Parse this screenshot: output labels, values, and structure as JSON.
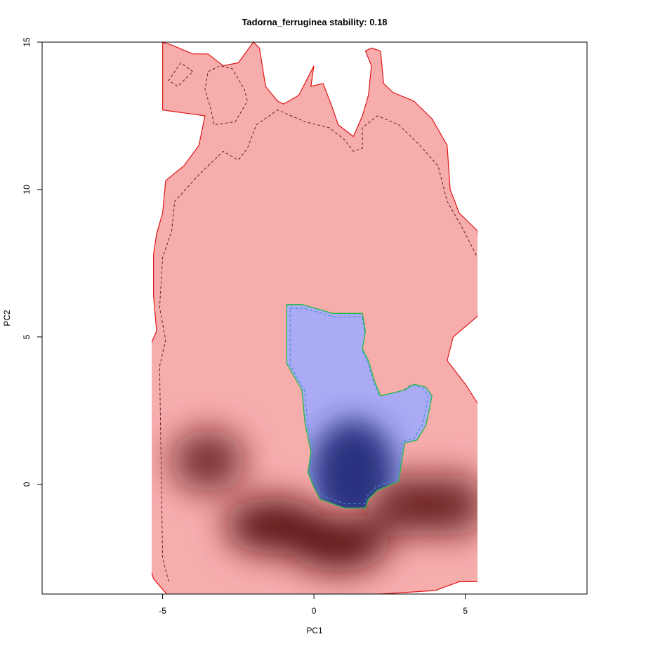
{
  "chart_data": {
    "type": "heatmap",
    "title": "Tadorna_ferruginea stability: 0.18",
    "xlabel": "PC1",
    "ylabel": "PC2",
    "xlim": [
      -8.98,
      9.02
    ],
    "ylim": [
      -3.72,
      15.0
    ],
    "x_ticks": [
      -5,
      0,
      5
    ],
    "x_tick_labels": [
      "-5",
      "0",
      "5"
    ],
    "y_ticks": [
      0,
      5,
      10,
      15
    ],
    "y_tick_labels": [
      "0",
      "5",
      "10",
      "15"
    ],
    "grid": false,
    "legend": "none",
    "colors": {
      "native_fill": "#f8adad",
      "native_outline": "#e01515",
      "native_density_peak": "#5a1212",
      "invaded_fill": "#aaaaf5",
      "invaded_density_peak": "#222a78",
      "invaded_outline": "#22bb44",
      "invaded_outline_inner": "#3a8fd0"
    },
    "series": [
      {
        "role": "native-envelope",
        "outline": [
          [
            -5.0,
            15.0
          ],
          [
            -4.7,
            14.9
          ],
          [
            -4.0,
            14.6
          ],
          [
            -3.5,
            14.6
          ],
          [
            -3.0,
            14.2
          ],
          [
            -2.5,
            14.3
          ],
          [
            -2.0,
            15.0
          ],
          [
            -1.8,
            14.8
          ],
          [
            -1.6,
            13.5
          ],
          [
            -1.2,
            13.0
          ],
          [
            -1.0,
            12.9
          ],
          [
            -0.5,
            13.2
          ],
          [
            -0.3,
            13.6
          ],
          [
            -0.1,
            14.0
          ],
          [
            0.0,
            14.2
          ],
          [
            -0.1,
            13.5
          ],
          [
            0.3,
            13.6
          ],
          [
            0.6,
            12.8
          ],
          [
            0.8,
            12.2
          ],
          [
            1.3,
            11.8
          ],
          [
            1.6,
            12.5
          ],
          [
            1.8,
            13.2
          ],
          [
            1.9,
            14.2
          ],
          [
            1.7,
            14.7
          ],
          [
            1.9,
            14.8
          ],
          [
            2.2,
            14.7
          ],
          [
            2.3,
            13.6
          ],
          [
            2.6,
            13.3
          ],
          [
            3.3,
            13.0
          ],
          [
            3.9,
            12.4
          ],
          [
            4.4,
            11.5
          ],
          [
            4.5,
            10.0
          ],
          [
            4.8,
            9.2
          ],
          [
            5.4,
            8.6
          ],
          [
            5.5,
            7.0
          ],
          [
            5.4,
            5.7
          ],
          [
            4.6,
            5.0
          ],
          [
            4.4,
            4.2
          ],
          [
            5.0,
            3.4
          ],
          [
            5.5,
            2.6
          ],
          [
            5.5,
            -3.3
          ],
          [
            4.8,
            -3.3
          ],
          [
            4.0,
            -3.6
          ],
          [
            1.0,
            -3.8
          ],
          [
            -4.8,
            -3.8
          ],
          [
            -5.3,
            -3.2
          ],
          [
            -5.5,
            -2.5
          ],
          [
            -5.5,
            4.5
          ],
          [
            -5.2,
            5.2
          ],
          [
            -5.3,
            6.4
          ],
          [
            -5.3,
            7.8
          ],
          [
            -5.2,
            8.5
          ],
          [
            -5.0,
            9.2
          ],
          [
            -4.9,
            10.3
          ],
          [
            -4.3,
            10.8
          ],
          [
            -3.8,
            11.5
          ],
          [
            -3.6,
            12.5
          ],
          [
            -4.3,
            12.6
          ],
          [
            -5.0,
            12.7
          ],
          [
            -5.0,
            15.0
          ]
        ],
        "contour_90": [
          [
            -4.0,
            14.0
          ],
          [
            -4.4,
            14.3
          ],
          [
            -4.8,
            13.7
          ],
          [
            -4.5,
            13.5
          ],
          [
            -4.0,
            14.0
          ],
          null,
          [
            -3.5,
            14.0
          ],
          [
            -3.1,
            14.2
          ],
          [
            -2.7,
            14.1
          ],
          [
            -2.3,
            13.4
          ],
          [
            -2.2,
            13.0
          ],
          [
            -2.6,
            12.3
          ],
          [
            -3.3,
            12.2
          ],
          [
            -3.4,
            12.7
          ],
          [
            -3.6,
            13.4
          ],
          [
            -3.5,
            14.0
          ],
          null,
          [
            -4.8,
            -3.3
          ],
          [
            -5.0,
            -2.5
          ],
          [
            -5.1,
            4.0
          ],
          [
            -4.9,
            4.9
          ],
          [
            -5.1,
            6.0
          ],
          [
            -5.0,
            7.7
          ],
          [
            -4.7,
            8.6
          ],
          [
            -4.6,
            9.6
          ],
          [
            -3.8,
            10.5
          ],
          [
            -3.0,
            11.3
          ],
          [
            -2.5,
            11.0
          ],
          [
            -2.2,
            11.4
          ],
          [
            -1.9,
            12.2
          ],
          [
            -1.2,
            12.7
          ],
          [
            -0.3,
            12.3
          ],
          [
            0.5,
            12.1
          ],
          [
            1.0,
            11.7
          ],
          [
            1.3,
            11.3
          ],
          [
            1.6,
            11.4
          ],
          [
            1.6,
            12.1
          ],
          [
            2.1,
            12.5
          ],
          [
            2.8,
            12.2
          ],
          [
            3.5,
            11.5
          ],
          [
            4.1,
            10.8
          ],
          [
            4.4,
            9.6
          ],
          [
            4.9,
            8.7
          ],
          [
            5.2,
            8.1
          ],
          [
            5.5,
            7.5
          ]
        ],
        "density_peaks": [
          [
            -3.5,
            0.8
          ],
          [
            -1.3,
            -1.4
          ],
          [
            0.8,
            -2.0
          ],
          [
            3.0,
            -0.7
          ],
          [
            4.5,
            -0.7
          ]
        ]
      },
      {
        "role": "invaded-envelope",
        "outline": [
          [
            -0.9,
            6.1
          ],
          [
            -0.4,
            6.1
          ],
          [
            0.3,
            5.9
          ],
          [
            0.6,
            5.8
          ],
          [
            1.6,
            5.8
          ],
          [
            1.7,
            5.2
          ],
          [
            1.6,
            4.6
          ],
          [
            1.8,
            4.2
          ],
          [
            2.0,
            3.5
          ],
          [
            2.2,
            3.0
          ],
          [
            2.6,
            3.1
          ],
          [
            3.0,
            3.2
          ],
          [
            3.3,
            3.4
          ],
          [
            3.7,
            3.3
          ],
          [
            3.9,
            3.0
          ],
          [
            3.7,
            2.0
          ],
          [
            3.4,
            1.5
          ],
          [
            3.0,
            1.4
          ],
          [
            2.9,
            0.8
          ],
          [
            2.8,
            0.1
          ],
          [
            2.1,
            -0.2
          ],
          [
            1.8,
            -0.5
          ],
          [
            1.7,
            -0.8
          ],
          [
            1.0,
            -0.8
          ],
          [
            0.2,
            -0.5
          ],
          [
            0.0,
            -0.1
          ],
          [
            -0.2,
            0.4
          ],
          [
            -0.1,
            1.1
          ],
          [
            -0.3,
            2.1
          ],
          [
            -0.4,
            3.2
          ],
          [
            -0.9,
            4.1
          ],
          [
            -0.9,
            5.5
          ],
          [
            -0.9,
            6.1
          ]
        ],
        "density_peaks": [
          [
            1.3,
            0.3
          ]
        ]
      }
    ]
  }
}
